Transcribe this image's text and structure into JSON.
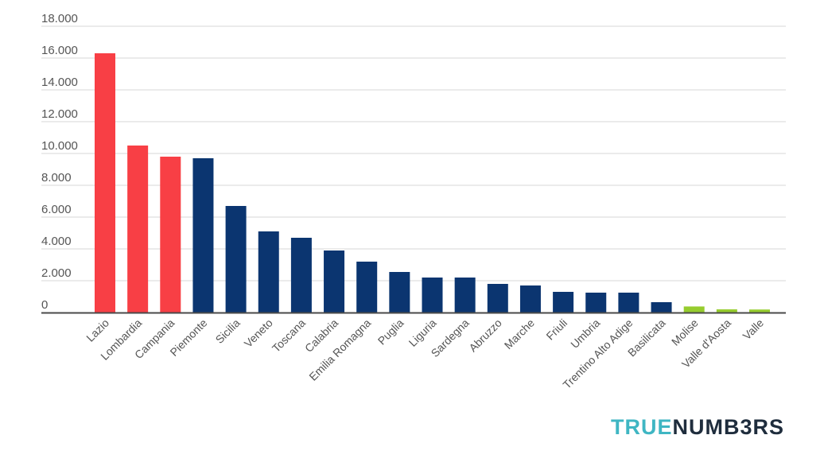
{
  "brand": {
    "part1": "TRUE",
    "part2": "NUMB3RS"
  },
  "colors": {
    "red": "#f83f45",
    "navy": "#0b3570",
    "green": "#96cc2e",
    "grid": "#d7d7d7",
    "axis": "#4a4a4a"
  },
  "chart_data": {
    "type": "bar",
    "title": "",
    "xlabel": "",
    "ylabel": "",
    "ylim": [
      0,
      18000
    ],
    "yticks": [
      0,
      2000,
      4000,
      6000,
      8000,
      10000,
      12000,
      14000,
      16000,
      18000
    ],
    "ytick_labels": [
      "0",
      "2.000",
      "4.000",
      "6.000",
      "8.000",
      "10.000",
      "12.000",
      "14.000",
      "16.000",
      "18.000"
    ],
    "grid": true,
    "legend": "none",
    "categories": [
      "Lazio",
      "Lombardia",
      "Campania",
      "Piemonte",
      "Sicilia",
      "Veneto",
      "Toscana",
      "Calabria",
      "Emilia Romagna",
      "Puglia",
      "Liguria",
      "Sardegna",
      "Abruzzo",
      "Marche",
      "Friuli",
      "Umbria",
      "Trentino Alto Adige",
      "Basilicata",
      "Molise",
      "Valle d'Aosta",
      "Valle"
    ],
    "values": [
      16300,
      10500,
      9800,
      9700,
      6700,
      5100,
      4700,
      3900,
      3200,
      2550,
      2200,
      2200,
      1800,
      1700,
      1300,
      1250,
      1250,
      650,
      380,
      200,
      190
    ],
    "bar_colors": [
      "red",
      "red",
      "red",
      "navy",
      "navy",
      "navy",
      "navy",
      "navy",
      "navy",
      "navy",
      "navy",
      "navy",
      "navy",
      "navy",
      "navy",
      "navy",
      "navy",
      "navy",
      "green",
      "green",
      "green"
    ]
  }
}
